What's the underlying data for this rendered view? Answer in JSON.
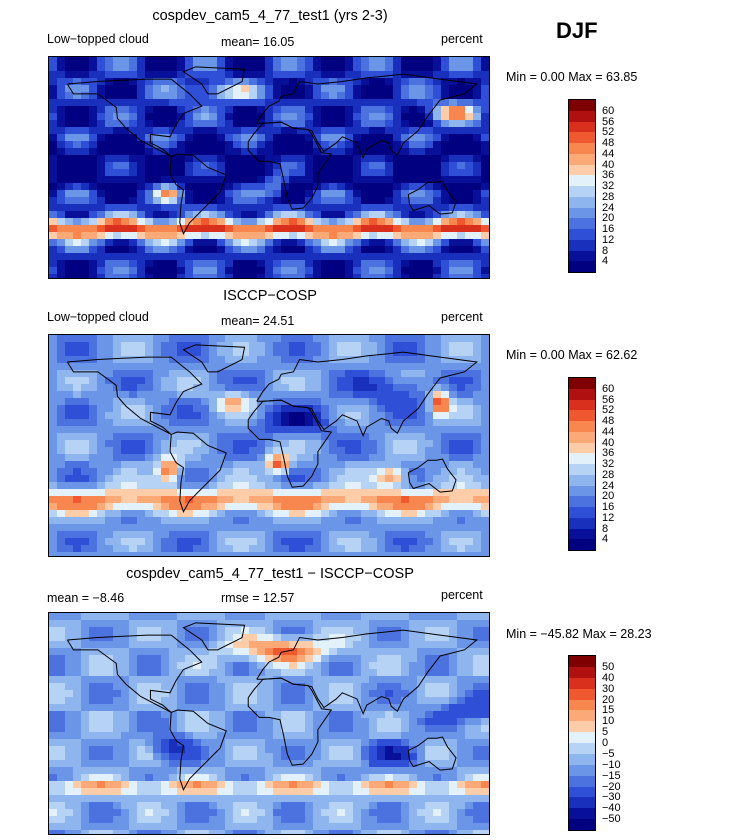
{
  "season": "DJF",
  "panels": [
    {
      "title": "cospdev_cam5_4_77_test1 (yrs 2-3)",
      "left_label": "Low−topped cloud",
      "center_label": "mean=  16.05",
      "right_label": "percent",
      "range_text": "Min =   0.00 Max =  63.85",
      "colorbar": {
        "labels": [
          "60",
          "56",
          "52",
          "48",
          "44",
          "40",
          "36",
          "32",
          "28",
          "24",
          "20",
          "16",
          "12",
          "8",
          "4"
        ],
        "colors": [
          "#7f0000",
          "#b01010",
          "#d9301e",
          "#f0582f",
          "#f7864f",
          "#fca978",
          "#fdcdaa",
          "#e3f1fb",
          "#b6d2f5",
          "#8fb5ef",
          "#6b95e6",
          "#4b72de",
          "#2e4fd6",
          "#1830bc",
          "#08109a",
          "#000080"
        ]
      },
      "map_style": "model"
    },
    {
      "title": "ISCCP−COSP",
      "left_label": "Low−topped cloud",
      "center_label": "mean=  24.51",
      "right_label": "percent",
      "range_text": "Min =   0.00 Max =  62.62",
      "colorbar": {
        "labels": [
          "60",
          "56",
          "52",
          "48",
          "44",
          "40",
          "36",
          "32",
          "28",
          "24",
          "20",
          "16",
          "12",
          "8",
          "4"
        ],
        "colors": [
          "#7f0000",
          "#b01010",
          "#d9301e",
          "#f0582f",
          "#f7864f",
          "#fca978",
          "#fdcdaa",
          "#e3f1fb",
          "#b6d2f5",
          "#8fb5ef",
          "#6b95e6",
          "#4b72de",
          "#2e4fd6",
          "#1830bc",
          "#08109a",
          "#000080"
        ]
      },
      "map_style": "obs"
    },
    {
      "title": "cospdev_cam5_4_77_test1 − ISCCP−COSP",
      "left_label": "mean =  −8.46",
      "center_label": "rmse =  12.57",
      "right_label": "percent",
      "range_text": "Min = −45.82 Max =  28.23",
      "colorbar": {
        "labels": [
          "50",
          "40",
          "30",
          "20",
          "15",
          "10",
          "5",
          "0",
          "−5",
          "−10",
          "−15",
          "−20",
          "−30",
          "−40",
          "−50"
        ],
        "colors": [
          "#7f0000",
          "#b01010",
          "#d9301e",
          "#f0582f",
          "#f7864f",
          "#fca978",
          "#fdcdaa",
          "#e3f1fb",
          "#b6d2f5",
          "#8fb5ef",
          "#6b95e6",
          "#4b72de",
          "#2e4fd6",
          "#1830bc",
          "#08109a",
          "#000080"
        ]
      },
      "map_style": "diff"
    }
  ],
  "chart_data": [
    {
      "type": "heatmap",
      "title": "cospdev_cam5_4_77_test1 (yrs 2-3)",
      "variable": "Low−topped cloud",
      "units": "percent",
      "season": "DJF",
      "mean": 16.05,
      "min": 0.0,
      "max": 63.85,
      "levels": [
        4,
        8,
        12,
        16,
        20,
        24,
        28,
        32,
        36,
        40,
        44,
        48,
        52,
        56,
        60
      ]
    },
    {
      "type": "heatmap",
      "title": "ISCCP−COSP",
      "variable": "Low−topped cloud",
      "units": "percent",
      "season": "DJF",
      "mean": 24.51,
      "min": 0.0,
      "max": 62.62,
      "levels": [
        4,
        8,
        12,
        16,
        20,
        24,
        28,
        32,
        36,
        40,
        44,
        48,
        52,
        56,
        60
      ]
    },
    {
      "type": "heatmap",
      "title": "cospdev_cam5_4_77_test1 − ISCCP−COSP",
      "units": "percent",
      "season": "DJF",
      "mean": -8.46,
      "rmse": 12.57,
      "min": -45.82,
      "max": 28.23,
      "levels": [
        -50,
        -40,
        -30,
        -20,
        -15,
        -10,
        -5,
        0,
        5,
        10,
        15,
        20,
        30,
        40,
        50
      ]
    }
  ]
}
